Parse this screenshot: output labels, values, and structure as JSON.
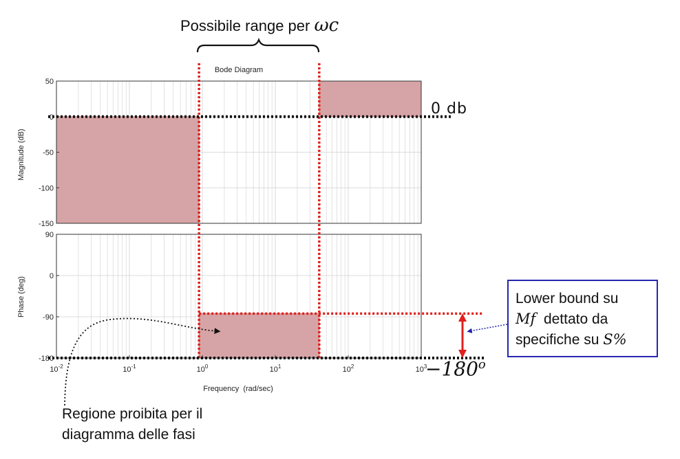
{
  "annotations": {
    "range_text": "Possibile range per",
    "range_symbol": "ωc",
    "zero_db": "0 db",
    "minus180": "−180",
    "minus180_exp": "o",
    "lower_bound_line1": "Lower bound su",
    "lower_bound_symbol": "Mf",
    "lower_bound_line2_rest": "dettato da",
    "lower_bound_line3": "specifiche su",
    "lower_bound_symbol2": "S%",
    "forbidden_region": "Regione proibita per il diagramma delle fasi"
  },
  "colors": {
    "forbidden_fill": "#d6a4a6",
    "forbidden_stroke": "#c47a7c",
    "red_dotted": "#e0201c",
    "black_dotted": "#111111",
    "box_border": "#2426b0",
    "arrow_red": "#e0201c",
    "arrow_blue": "#2426b0",
    "grid": "#d0d0d0"
  },
  "chart_data": {
    "type": "line",
    "title": "Bode Diagram",
    "xlabel": "Frequency  (rad/sec)",
    "x_scale": "log",
    "xlim": [
      0.01,
      1000
    ],
    "x_ticks": [
      {
        "base": "10",
        "exp": "-2",
        "value": 0.01
      },
      {
        "base": "10",
        "exp": "-1",
        "value": 0.1
      },
      {
        "base": "10",
        "exp": "0",
        "value": 1
      },
      {
        "base": "10",
        "exp": "1",
        "value": 10
      },
      {
        "base": "10",
        "exp": "2",
        "value": 100
      },
      {
        "base": "10",
        "exp": "3",
        "value": 1000
      }
    ],
    "magnitude": {
      "ylabel": "Magnitude (dB)",
      "ylim": [
        -150,
        50
      ],
      "yticks": [
        50,
        0,
        -50,
        -100,
        -150
      ],
      "forbidden_regions": [
        {
          "x": [
            0.01,
            0.9
          ],
          "y": [
            -150,
            0
          ]
        },
        {
          "x": [
            40,
            1000
          ],
          "y": [
            0,
            50
          ]
        }
      ],
      "zero_db_line": 0
    },
    "phase": {
      "ylabel": "Phase (deg)",
      "ylim": [
        -180,
        90
      ],
      "yticks": [
        90,
        0,
        -90,
        -180
      ],
      "forbidden_regions": [
        {
          "x": [
            0.9,
            40
          ],
          "y": [
            -180,
            -83
          ]
        }
      ],
      "lower_bound_phase": -83,
      "minus180_line": -180
    },
    "crossover_range": [
      0.9,
      40
    ]
  }
}
